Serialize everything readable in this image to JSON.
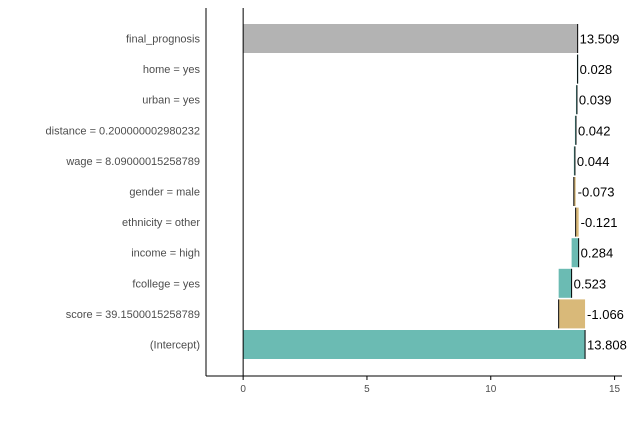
{
  "chart_data": {
    "type": "waterfall",
    "orientation": "horizontal",
    "categories": [
      "final_prognosis",
      "home = yes",
      "urban = yes",
      "distance = 0.200000002980232",
      "wage = 8.09000015258789",
      "gender = male",
      "ethnicity = other",
      "income = high",
      "fcollege = yes",
      "score = 39.1500015258789",
      "(Intercept)"
    ],
    "values": [
      13.509,
      0.028,
      0.039,
      0.042,
      0.044,
      -0.073,
      -0.121,
      0.284,
      0.523,
      -1.066,
      13.808
    ],
    "value_labels": [
      "13.509",
      "0.028",
      "0.039",
      "0.042",
      "0.044",
      "-0.073",
      "-0.121",
      "0.284",
      "0.523",
      "-1.066",
      "13.808"
    ],
    "bar_types": [
      "total",
      "positive",
      "positive",
      "positive",
      "positive",
      "negative",
      "negative",
      "positive",
      "positive",
      "negative",
      "intercept"
    ],
    "xlim": [
      -1.5,
      15.3
    ],
    "x_ticks": [
      0,
      5,
      10,
      15
    ],
    "x_tick_labels": [
      "0",
      "5",
      "10",
      "15"
    ],
    "colors": {
      "positive": "#6bbbb3",
      "negative": "#d9b979",
      "intercept": "#6bbbb3",
      "total": "#b3b3b3"
    },
    "grid": false,
    "legend": "none"
  }
}
